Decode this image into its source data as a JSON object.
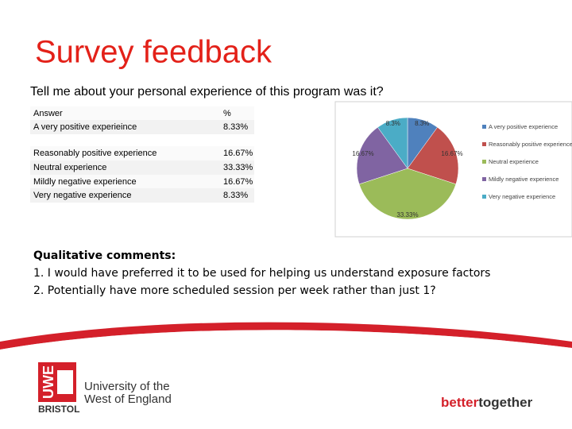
{
  "header": {
    "title": "Survey feedback",
    "subtitle": "Tell me about your personal experience of this program was it?"
  },
  "table": {
    "header": [
      "Answer",
      "%"
    ],
    "rows": [
      [
        "A very positive experieince",
        "8.33%"
      ],
      [
        "Reasonably positive experience",
        "16.67%"
      ],
      [
        "Neutral experience",
        "33.33%"
      ],
      [
        "Mildly negative experience",
        "16.67%"
      ],
      [
        "Very negative experience",
        "8.33%"
      ]
    ]
  },
  "chart_data": {
    "type": "pie",
    "categories": [
      "A very positive experience",
      "Reasonably positive experience",
      "Neutral experience",
      "Mildly negative experience",
      "Very negative experience"
    ],
    "values": [
      8.33,
      16.67,
      33.33,
      16.67,
      8.33
    ],
    "value_labels": [
      "8.3%",
      "16.67%",
      "33.33%",
      "16.67%",
      "8.3%"
    ],
    "colors": [
      "#4f81bd",
      "#c0504d",
      "#9bbb59",
      "#8064a2",
      "#4bacc6"
    ],
    "legend": "right"
  },
  "comments": {
    "heading": "Qualitative comments:",
    "lines": [
      "1. I would have preferred it to be used for helping us understand exposure factors",
      "2. Potentially have more scheduled session per week rather than just 1?"
    ]
  },
  "footer": {
    "logo": "UWE",
    "university": [
      "University of the",
      "West of England"
    ],
    "city": "BRISTOL",
    "tagline": [
      "better",
      "together"
    ]
  }
}
